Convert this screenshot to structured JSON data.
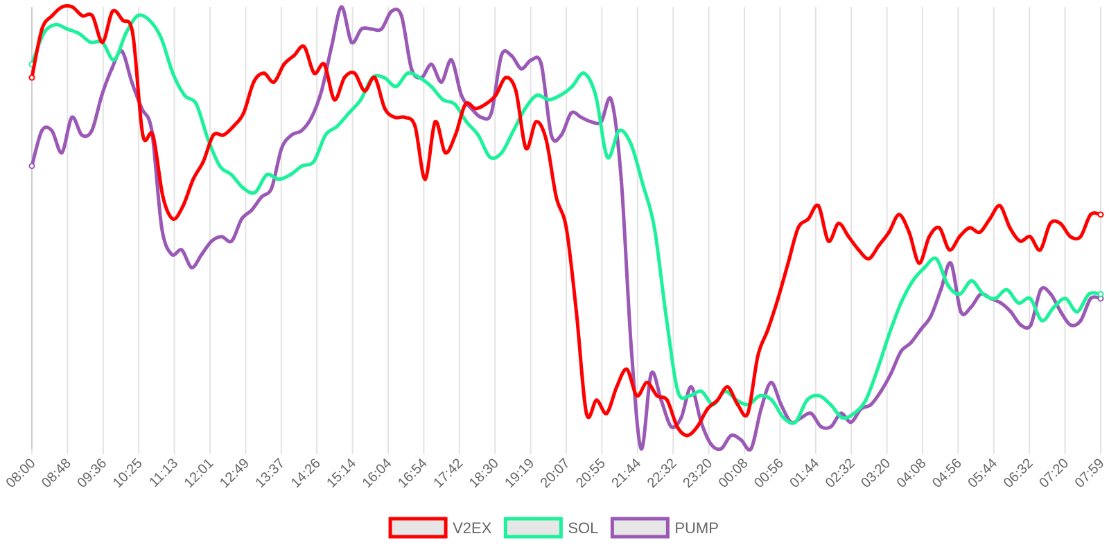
{
  "chart_data": {
    "type": "line",
    "title": "",
    "xlabel": "",
    "ylabel": "",
    "grid": "vertical",
    "legend_position": "bottom",
    "ylim": [
      0,
      100
    ],
    "x_tick_labels": [
      "08:00",
      "08:48",
      "09:36",
      "10:25",
      "11:13",
      "12:01",
      "12:49",
      "13:37",
      "14:26",
      "15:14",
      "16:04",
      "16:54",
      "17:42",
      "18:30",
      "19:19",
      "20:07",
      "20:55",
      "21:44",
      "22:32",
      "23:20",
      "00:08",
      "00:56",
      "01:44",
      "02:32",
      "03:20",
      "04:08",
      "04:56",
      "05:44",
      "06:32",
      "07:20",
      "07:59"
    ],
    "series": [
      {
        "name": "V2EX",
        "color": "#ff0000",
        "values": [
          84,
          95,
          98,
          100,
          100,
          98,
          98,
          92,
          99,
          97,
          94,
          71,
          71,
          57,
          52,
          55,
          61,
          65,
          71,
          71,
          73,
          76,
          83,
          85,
          83,
          87,
          89,
          91,
          85,
          87,
          79,
          84,
          85,
          81,
          84,
          77,
          75,
          75,
          73,
          61,
          74,
          67,
          71,
          78,
          77,
          78,
          80,
          84,
          81,
          68,
          74,
          70,
          57,
          50,
          31,
          8,
          11,
          8,
          14,
          18,
          12,
          15,
          12,
          11,
          5,
          3,
          5,
          9,
          11,
          14,
          10,
          8,
          21,
          27,
          34,
          42,
          50,
          52,
          55,
          47,
          51,
          48,
          45,
          43,
          46,
          49,
          53,
          49,
          42,
          48,
          50,
          45,
          48,
          50,
          49,
          52,
          55,
          50,
          47,
          48,
          45,
          51,
          51,
          48,
          48,
          53,
          53
        ]
      },
      {
        "name": "SOL",
        "color": "#1ef19b",
        "values": [
          87,
          94,
          96,
          95,
          94,
          92,
          92,
          88,
          94,
          98,
          97,
          93,
          85,
          80,
          78,
          70,
          64,
          62,
          59,
          58,
          62,
          61,
          62,
          64,
          65,
          71,
          73,
          76,
          79,
          84,
          84,
          82,
          85,
          84,
          82,
          79,
          78,
          74,
          71,
          66,
          67,
          72,
          77,
          80,
          79,
          80,
          82,
          85,
          80,
          66,
          72,
          69,
          60,
          50,
          30,
          13,
          12,
          13,
          10,
          13,
          11,
          10,
          12,
          11,
          7,
          6,
          11,
          12,
          10,
          7,
          8,
          11,
          18,
          26,
          33,
          38,
          41,
          43,
          37,
          35,
          38,
          35,
          34,
          36,
          33,
          34,
          29,
          32,
          34,
          31,
          35,
          35
        ]
      },
      {
        "name": "PUMP",
        "color": "#9b59b6",
        "values": [
          64,
          72,
          72,
          67,
          75,
          71,
          72,
          80,
          86,
          90,
          83,
          77,
          72,
          50,
          44,
          45,
          41,
          44,
          47,
          48,
          47,
          52,
          54,
          57,
          59,
          68,
          71,
          72,
          75,
          81,
          91,
          100,
          92,
          95,
          95,
          95,
          99,
          98,
          86,
          84,
          87,
          83,
          88,
          80,
          77,
          75,
          76,
          89,
          89,
          86,
          88,
          87,
          71,
          71,
          76,
          75,
          74,
          74,
          79,
          61,
          23,
          0,
          17,
          11,
          5,
          7,
          14,
          6,
          1,
          0,
          3,
          2,
          0,
          9,
          15,
          10,
          6,
          7,
          8,
          5,
          5,
          8,
          6,
          9,
          10,
          13,
          17,
          22,
          24,
          27,
          30,
          36,
          42,
          31,
          32,
          35,
          34,
          33,
          31,
          28,
          28,
          36,
          35,
          31,
          28,
          29,
          34,
          34
        ]
      }
    ]
  }
}
